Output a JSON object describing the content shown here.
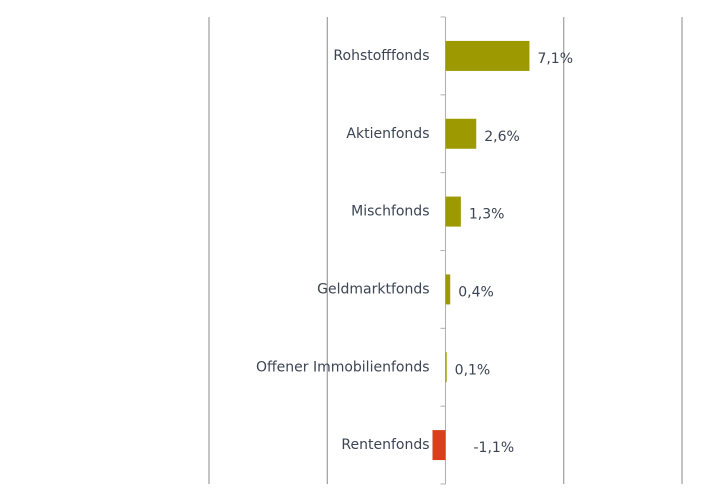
{
  "chart_data": {
    "type": "hbar",
    "categories": [
      "Rohstofffonds",
      "Aktienfonds",
      "Mischfonds",
      "Geldmarktfonds",
      "Offener Immobilienfonds",
      "Rentenfonds"
    ],
    "values": [
      7.1,
      2.6,
      1.3,
      0.4,
      0.1,
      -1.1
    ],
    "value_labels": [
      "7,1%",
      "2,6%",
      "1,3%",
      "0,4%",
      "0,1%",
      "-1,1%"
    ],
    "colors": [
      "#9c9a00",
      "#9c9a00",
      "#9c9a00",
      "#9c9a00",
      "#9c9a00",
      "#d9401a"
    ],
    "xlim": [
      -20,
      20
    ],
    "xticks": [
      -20,
      -10,
      0,
      10,
      20
    ],
    "grid": true
  }
}
